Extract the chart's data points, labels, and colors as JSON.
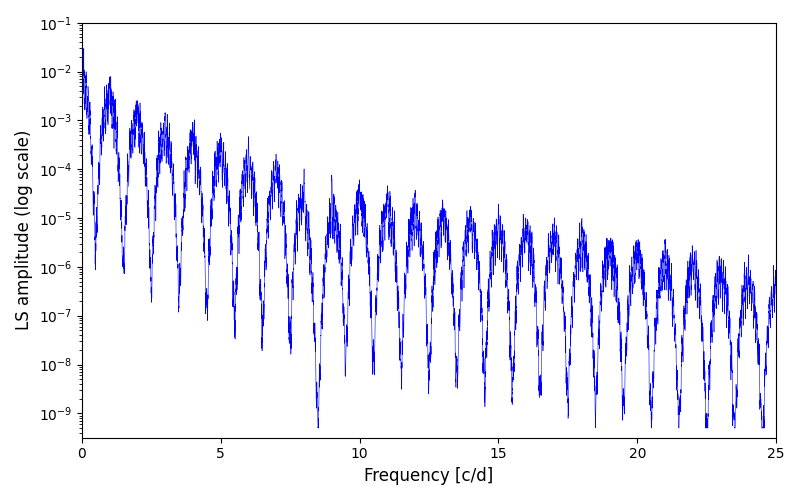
{
  "title": "",
  "xlabel": "Frequency [c/d]",
  "ylabel": "LS amplitude (log scale)",
  "xlim": [
    0,
    25
  ],
  "ylim_log_min": -9.5,
  "ylim_log_max": -1.0,
  "line_color": "#0000ff",
  "background_color": "#ffffff",
  "figsize": [
    8.0,
    5.0
  ],
  "dpi": 100,
  "yscale": "log",
  "seed": 12345,
  "n_points": 8000,
  "freq_max": 25.0
}
